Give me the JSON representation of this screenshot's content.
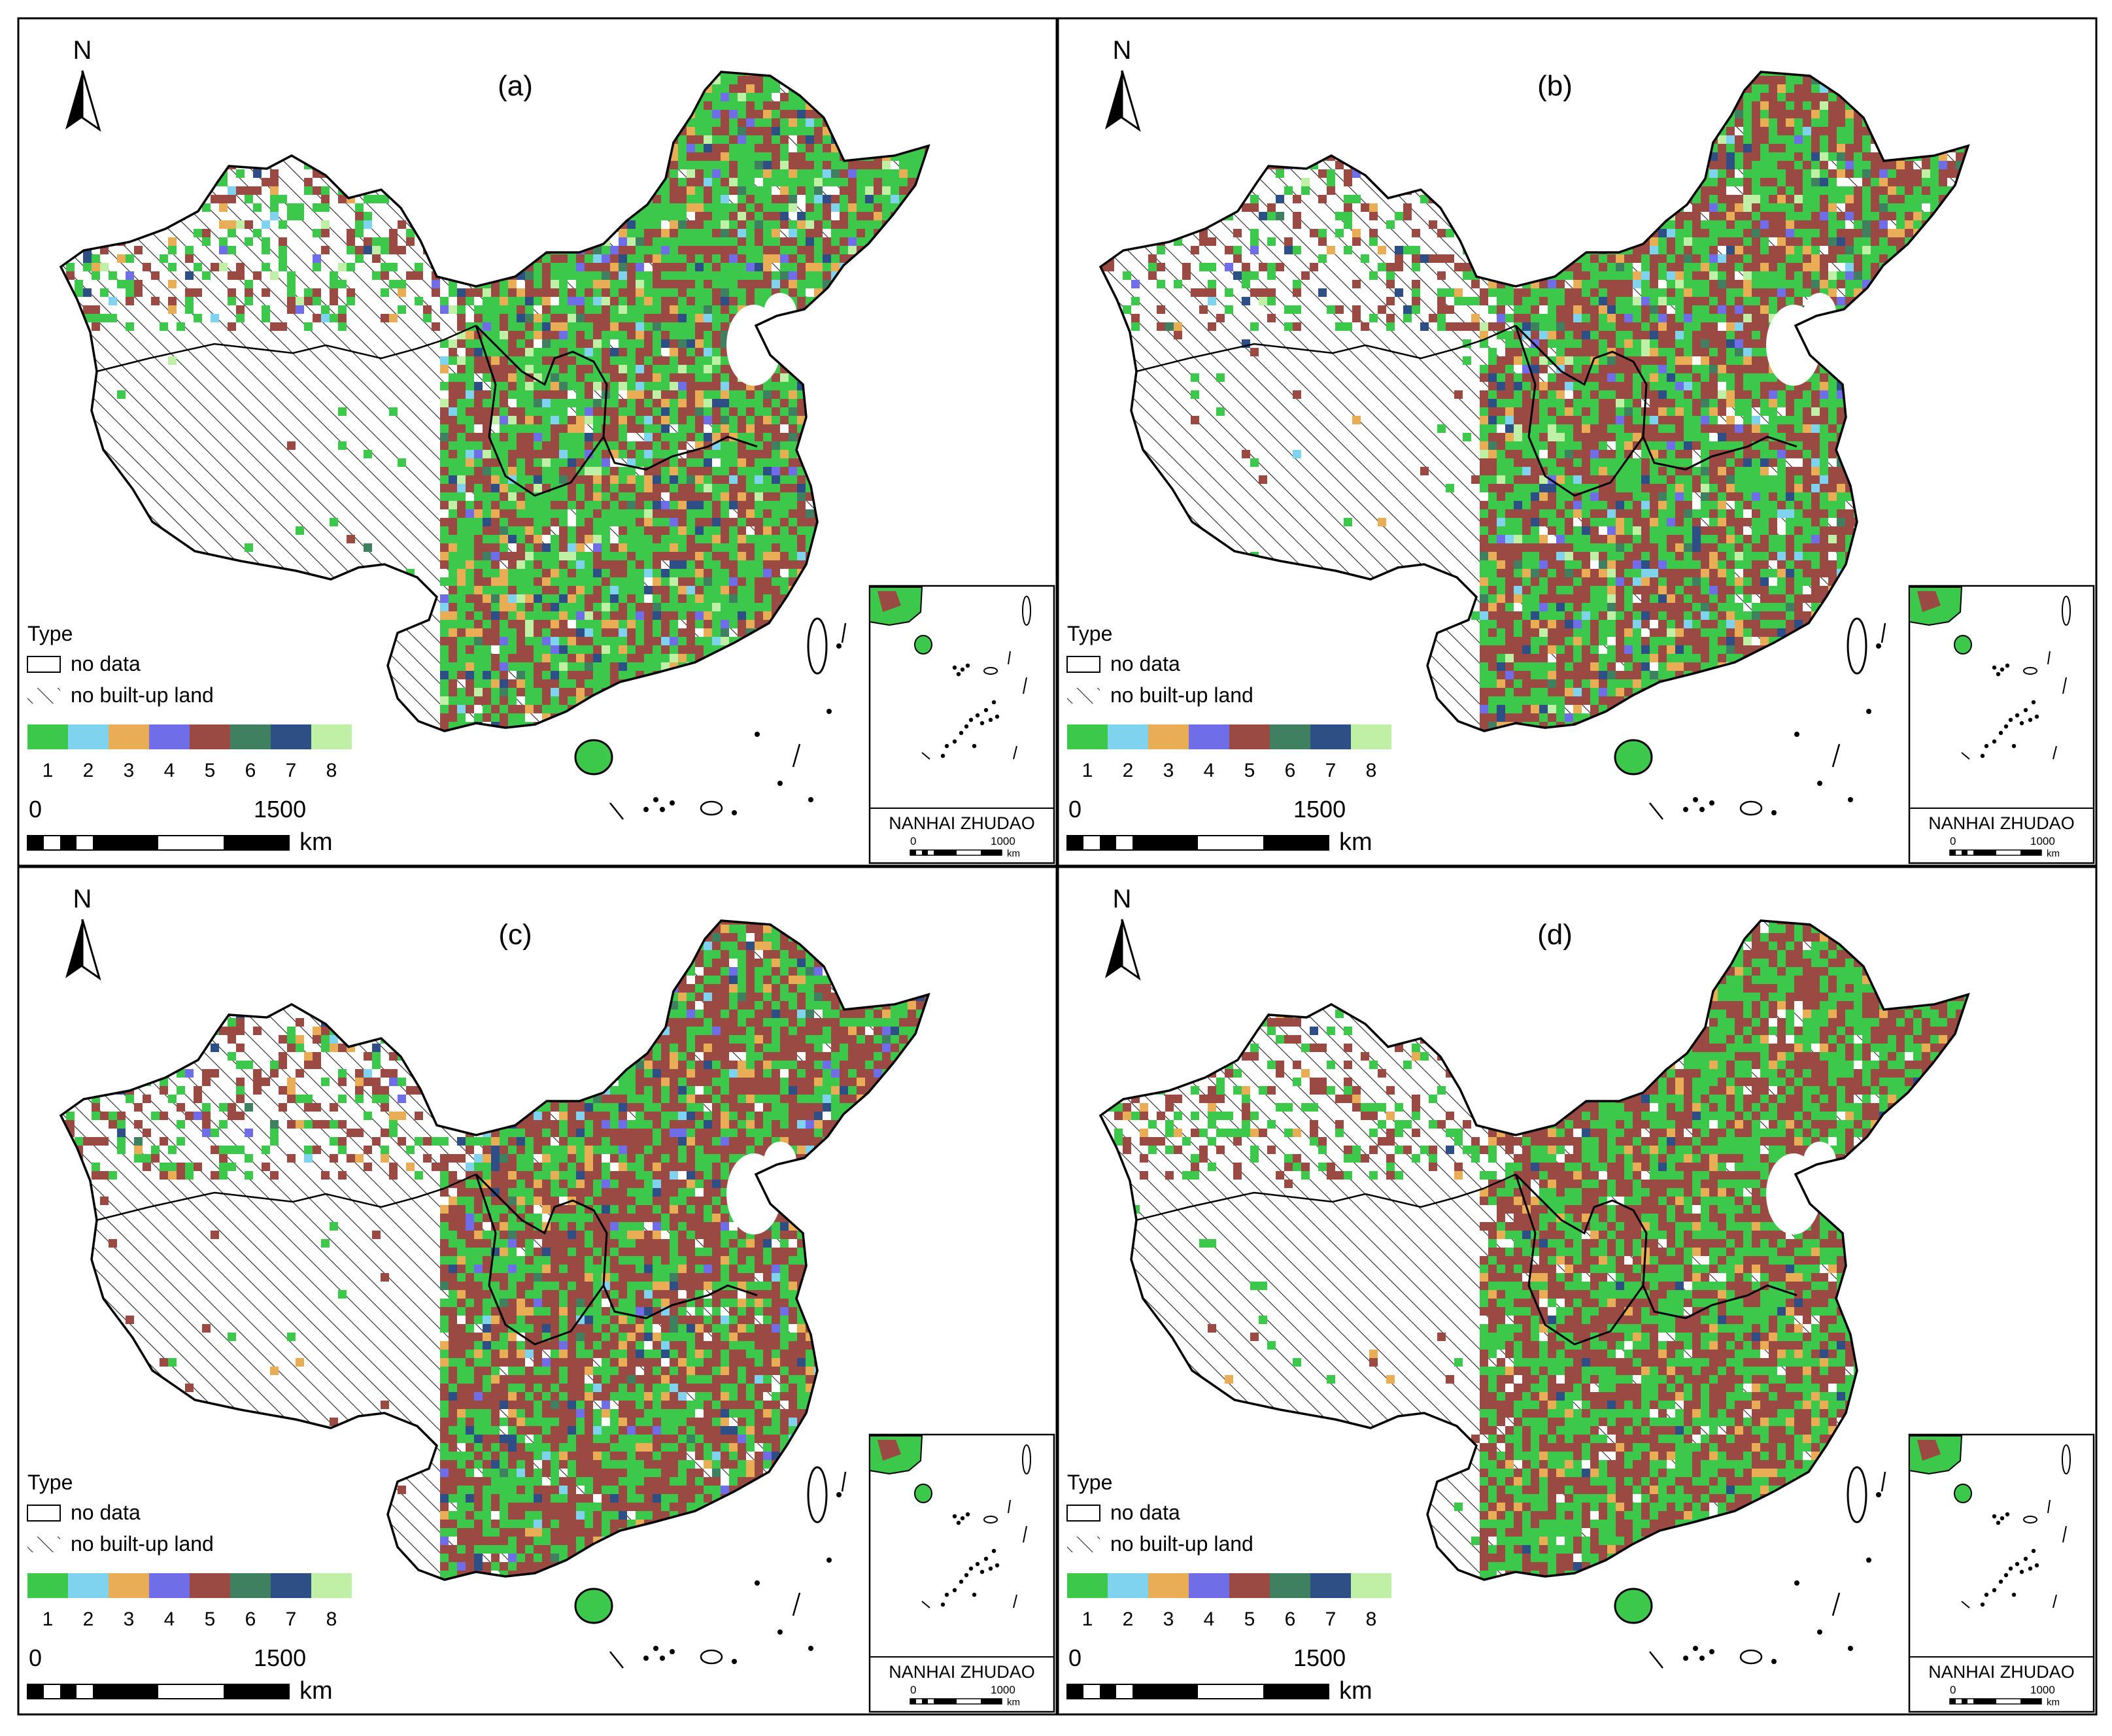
{
  "panels": [
    {
      "label": "(a)"
    },
    {
      "label": "(b)"
    },
    {
      "label": "(c)"
    },
    {
      "label": "(d)"
    }
  ],
  "north_label": "N",
  "legend": {
    "title": "Type",
    "no_data": "no data",
    "no_builtup": "no built-up land",
    "classes": [
      {
        "label": "1",
        "color": "#3cc84a"
      },
      {
        "label": "2",
        "color": "#7fd3ef"
      },
      {
        "label": "3",
        "color": "#e9ad55"
      },
      {
        "label": "4",
        "color": "#6f6ee8"
      },
      {
        "label": "5",
        "color": "#9a4a43"
      },
      {
        "label": "6",
        "color": "#3f8060"
      },
      {
        "label": "7",
        "color": "#2e4f86"
      },
      {
        "label": "8",
        "color": "#bff0a6"
      }
    ]
  },
  "scale": {
    "zero": "0",
    "max": "1500",
    "unit": "km"
  },
  "inset": {
    "title": "NANHAI ZHUDAO",
    "zero": "0",
    "max": "1000",
    "unit": "km"
  },
  "panel_dominance": [
    {
      "green": 0.48,
      "brown": 0.34
    },
    {
      "green": 0.4,
      "brown": 0.43
    },
    {
      "green": 0.36,
      "brown": 0.5
    },
    {
      "green": 0.46,
      "brown": 0.47
    }
  ]
}
